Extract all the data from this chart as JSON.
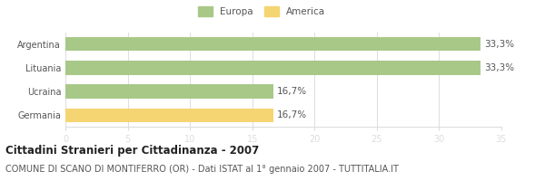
{
  "categories": [
    "Germania",
    "Ucraina",
    "Lituania",
    "Argentina"
  ],
  "values": [
    33.3,
    33.3,
    16.7,
    16.7
  ],
  "bar_colors": [
    "#a8c888",
    "#a8c888",
    "#a8c888",
    "#f5d472"
  ],
  "bar_labels": [
    "33,3%",
    "33,3%",
    "16,7%",
    "16,7%"
  ],
  "legend_labels": [
    "Europa",
    "America"
  ],
  "legend_colors": [
    "#a8c888",
    "#f5d472"
  ],
  "xlim": [
    0,
    35
  ],
  "xticks": [
    0,
    5,
    10,
    15,
    20,
    25,
    30,
    35
  ],
  "title": "Cittadini Stranieri per Cittadinanza - 2007",
  "subtitle": "COMUNE DI SCANO DI MONTIFERRO (OR) - Dati ISTAT al 1° gennaio 2007 - TUTTITALIA.IT",
  "title_fontsize": 8.5,
  "subtitle_fontsize": 7.0,
  "label_fontsize": 7.5,
  "tick_fontsize": 7.0,
  "background_color": "#ffffff",
  "bar_edge_color": "none",
  "grid_color": "#dddddd",
  "text_color": "#555555"
}
